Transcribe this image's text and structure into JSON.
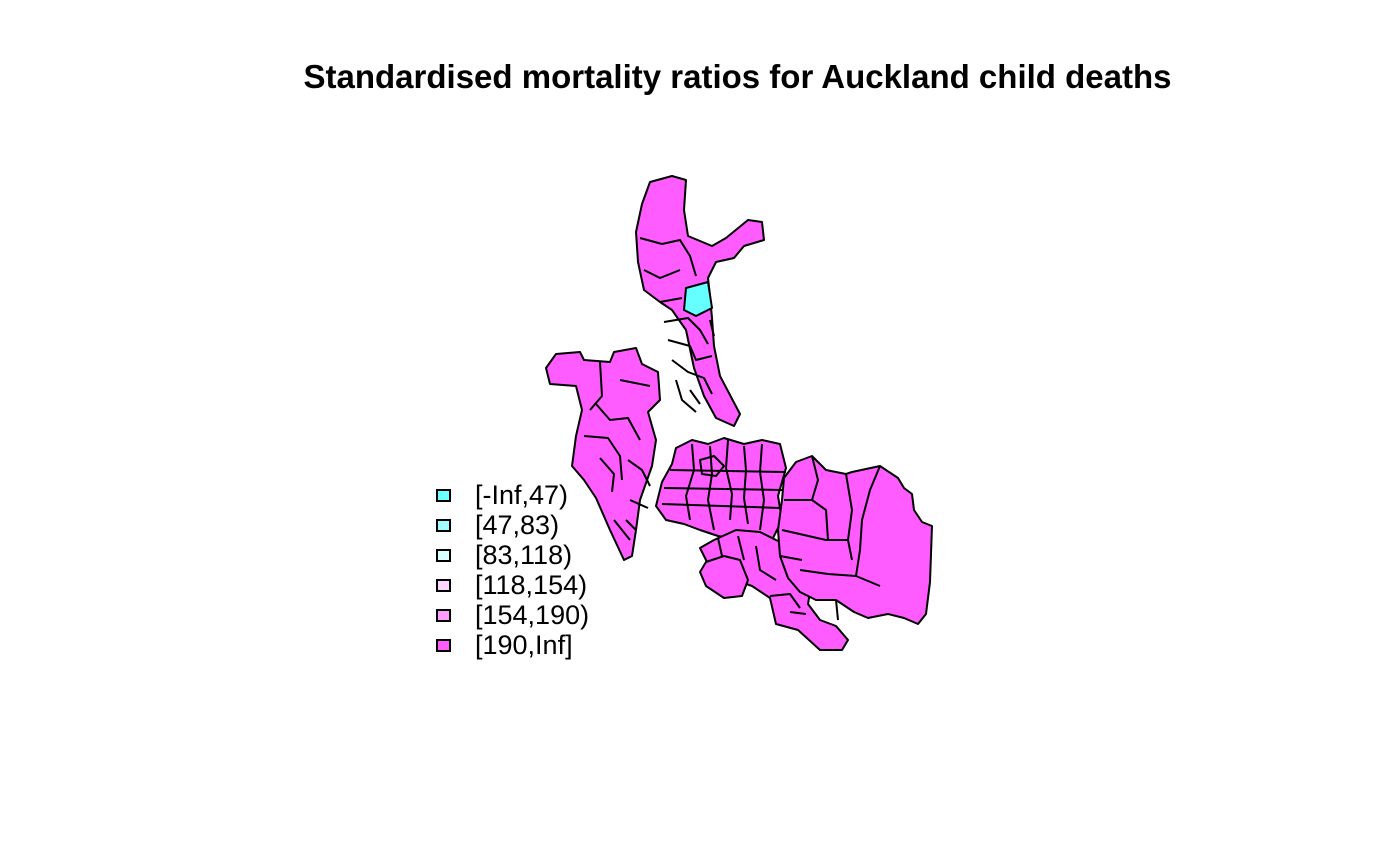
{
  "title": "Standardised mortality ratios for Auckland child deaths",
  "colors": {
    "high": "#ff5cff",
    "low": "#66ffff",
    "border": "#000000"
  },
  "legend": [
    {
      "label": "[-Inf,47)",
      "color": "#6bffff"
    },
    {
      "label": "[47,83)",
      "color": "#a3ffff"
    },
    {
      "label": "[83,118)",
      "color": "#d9ffff"
    },
    {
      "label": "[118,154)",
      "color": "#ffd6ff"
    },
    {
      "label": "[154,190)",
      "color": "#ff9cff"
    },
    {
      "label": "[190,Inf]",
      "color": "#ff5cff"
    }
  ]
}
